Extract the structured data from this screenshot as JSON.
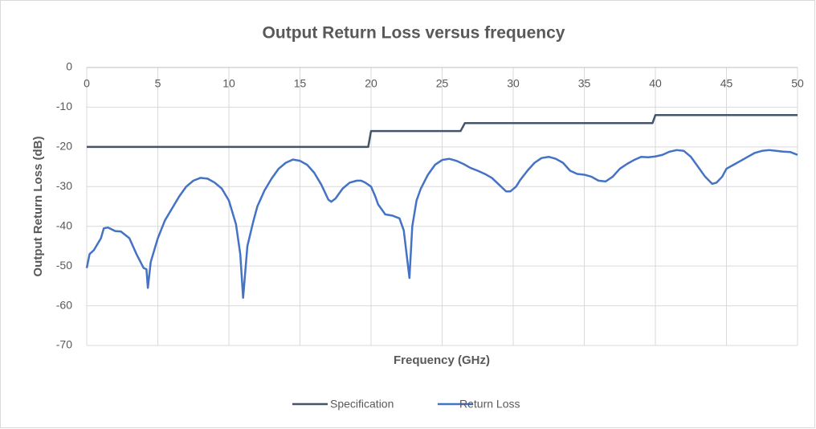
{
  "chart_data": {
    "type": "line",
    "title": "Output Return Loss versus frequency",
    "x_label": "Frequency (GHz)",
    "y_label": "Output Return Loss (dB)",
    "xlim": [
      0,
      50
    ],
    "xticks": [
      0,
      5,
      10,
      15,
      20,
      25,
      30,
      35,
      40,
      45,
      50
    ],
    "ylim": [
      -70,
      0
    ],
    "yticks": [
      -70,
      -60,
      -50,
      -40,
      -30,
      -20,
      -10,
      0
    ],
    "grid": true,
    "legend": "bottom",
    "series": [
      {
        "name": "Specification",
        "color": "#44546a",
        "x": [
          0,
          19.8,
          20,
          26.3,
          26.6,
          39.8,
          40,
          50
        ],
        "values": [
          -20,
          -20,
          -16,
          -16,
          -14,
          -14,
          -12,
          -12
        ]
      },
      {
        "name": "Return Loss",
        "color": "#4472c4",
        "x": [
          0,
          0.2,
          0.5,
          1.0,
          1.2,
          1.5,
          2.0,
          2.4,
          3.0,
          3.5,
          4.0,
          4.2,
          4.3,
          4.5,
          5.0,
          5.5,
          6.0,
          6.5,
          7.0,
          7.5,
          8.0,
          8.5,
          9.0,
          9.5,
          10.0,
          10.5,
          10.8,
          11.0,
          11.3,
          11.7,
          12.0,
          12.5,
          13.0,
          13.5,
          14.0,
          14.5,
          15.0,
          15.5,
          16.0,
          16.5,
          17.0,
          17.2,
          17.5,
          18.0,
          18.5,
          19.0,
          19.3,
          19.6,
          20.0,
          20.3,
          20.5,
          21.0,
          21.5,
          22.0,
          22.3,
          22.7,
          22.9,
          23.2,
          23.5,
          24.0,
          24.5,
          25.0,
          25.5,
          26.0,
          26.5,
          27.0,
          27.5,
          28.0,
          28.5,
          29.0,
          29.5,
          29.8,
          30.2,
          30.5,
          31.0,
          31.5,
          32.0,
          32.5,
          33.0,
          33.5,
          34.0,
          34.5,
          35.0,
          35.5,
          36.0,
          36.5,
          37.0,
          37.5,
          38.0,
          38.5,
          39.0,
          39.5,
          40.0,
          40.5,
          41.0,
          41.5,
          42.0,
          42.5,
          43.0,
          43.5,
          44.0,
          44.3,
          44.7,
          45.0,
          45.5,
          46.0,
          46.5,
          47.0,
          47.5,
          48.0,
          48.5,
          49.0,
          49.5,
          50.0
        ],
        "values": [
          -50.5,
          -47,
          -46,
          -43,
          -40.5,
          -40.3,
          -41.2,
          -41.3,
          -43,
          -47,
          -50.5,
          -50.8,
          -55.5,
          -49,
          -43,
          -38.5,
          -35.5,
          -32.5,
          -30,
          -28.5,
          -27.8,
          -28,
          -29,
          -30.5,
          -33.5,
          -39.5,
          -47,
          -58,
          -45,
          -39,
          -35,
          -31,
          -28,
          -25.5,
          -24,
          -23.2,
          -23.5,
          -24.5,
          -26.5,
          -29.5,
          -33.3,
          -33.8,
          -33,
          -30.5,
          -29,
          -28.5,
          -28.5,
          -29,
          -30,
          -32.5,
          -34.5,
          -37,
          -37.3,
          -38,
          -41,
          -53,
          -40,
          -33.5,
          -30.5,
          -27,
          -24.5,
          -23.3,
          -23,
          -23.5,
          -24.3,
          -25.3,
          -26,
          -26.8,
          -27.8,
          -29.5,
          -31.2,
          -31.2,
          -30,
          -28.3,
          -26,
          -24,
          -22.8,
          -22.5,
          -23,
          -24,
          -26,
          -26.8,
          -27,
          -27.5,
          -28.5,
          -28.7,
          -27.5,
          -25.5,
          -24.3,
          -23.3,
          -22.5,
          -22.6,
          -22.4,
          -22,
          -21.2,
          -20.8,
          -21,
          -22.5,
          -25,
          -27.5,
          -29.3,
          -29,
          -27.5,
          -25.5,
          -24.5,
          -23.5,
          -22.5,
          -21.5,
          -21,
          -20.8,
          -21,
          -21.2,
          -21.3,
          -22
        ]
      }
    ]
  }
}
